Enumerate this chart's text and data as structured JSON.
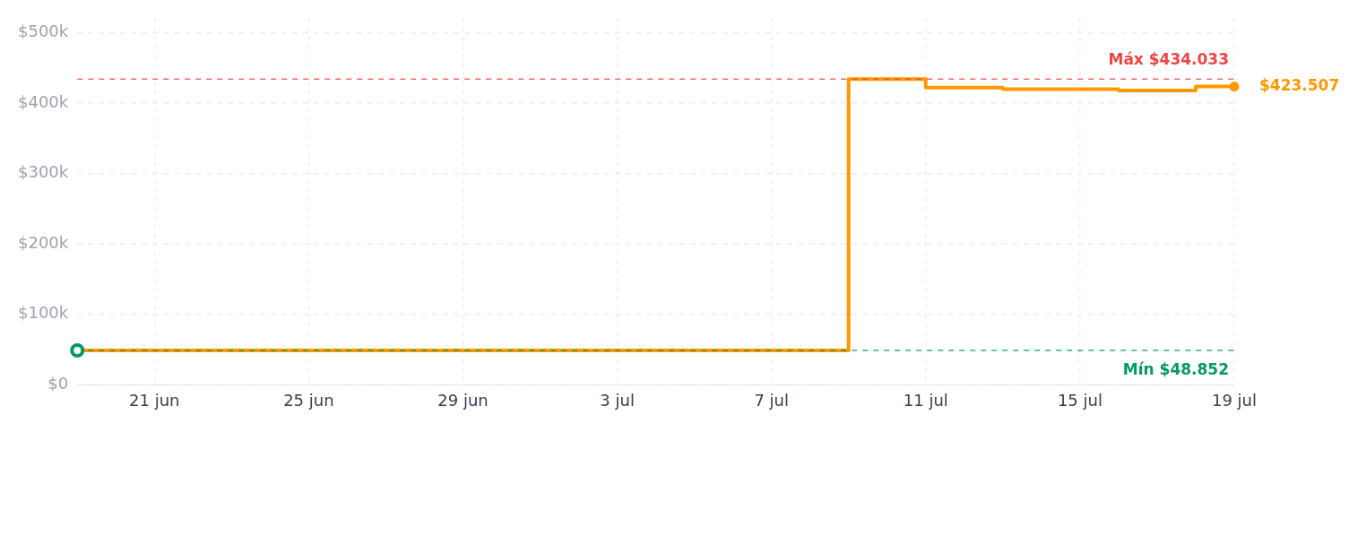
{
  "chart_data": {
    "type": "step",
    "x": [
      "--06-19",
      "--07-09",
      "--07-11",
      "--07-13",
      "--07-16",
      "--07-18",
      "--07-19"
    ],
    "series": [
      {
        "color": "#ff9900",
        "values": [
          48852,
          434033,
          422000,
          420000,
          418000,
          423507,
          423507
        ]
      }
    ],
    "xlim": [
      "--06-19",
      "--07-19"
    ],
    "xticks": [
      {
        "value": "--06-21",
        "label": "21 jun"
      },
      {
        "value": "--06-25",
        "label": "25 jun"
      },
      {
        "value": "--06-29",
        "label": "29 jun"
      },
      {
        "value": "--07-03",
        "label": "3 jul"
      },
      {
        "value": "--07-07",
        "label": "7 jul"
      },
      {
        "value": "--07-11",
        "label": "11 jul"
      },
      {
        "value": "--07-15",
        "label": "15 jul"
      },
      {
        "value": "--07-19",
        "label": "19 jul"
      }
    ],
    "ylim": [
      0,
      520000
    ],
    "yticks": [
      {
        "value": 0,
        "label": "$0"
      },
      {
        "value": 100000,
        "label": "$100k"
      },
      {
        "value": 200000,
        "label": "$200k"
      },
      {
        "value": 300000,
        "label": "$300k"
      },
      {
        "value": 400000,
        "label": "$400k"
      },
      {
        "value": 500000,
        "label": "$500k"
      }
    ],
    "ref_lines": [
      {
        "axis": "y",
        "value": 434033,
        "label": "Máx $434.033",
        "color": "#ef4444",
        "line_style": "dashed"
      },
      {
        "axis": "y",
        "value": 48852,
        "label": "Mín $48.852",
        "color": "#059669",
        "line_style": "dashed"
      }
    ],
    "annotations": [
      {
        "text": "$423.507",
        "x": "--07-19",
        "y": 423507
      }
    ],
    "grid": true,
    "marker": "none",
    "line_style": "solid"
  }
}
